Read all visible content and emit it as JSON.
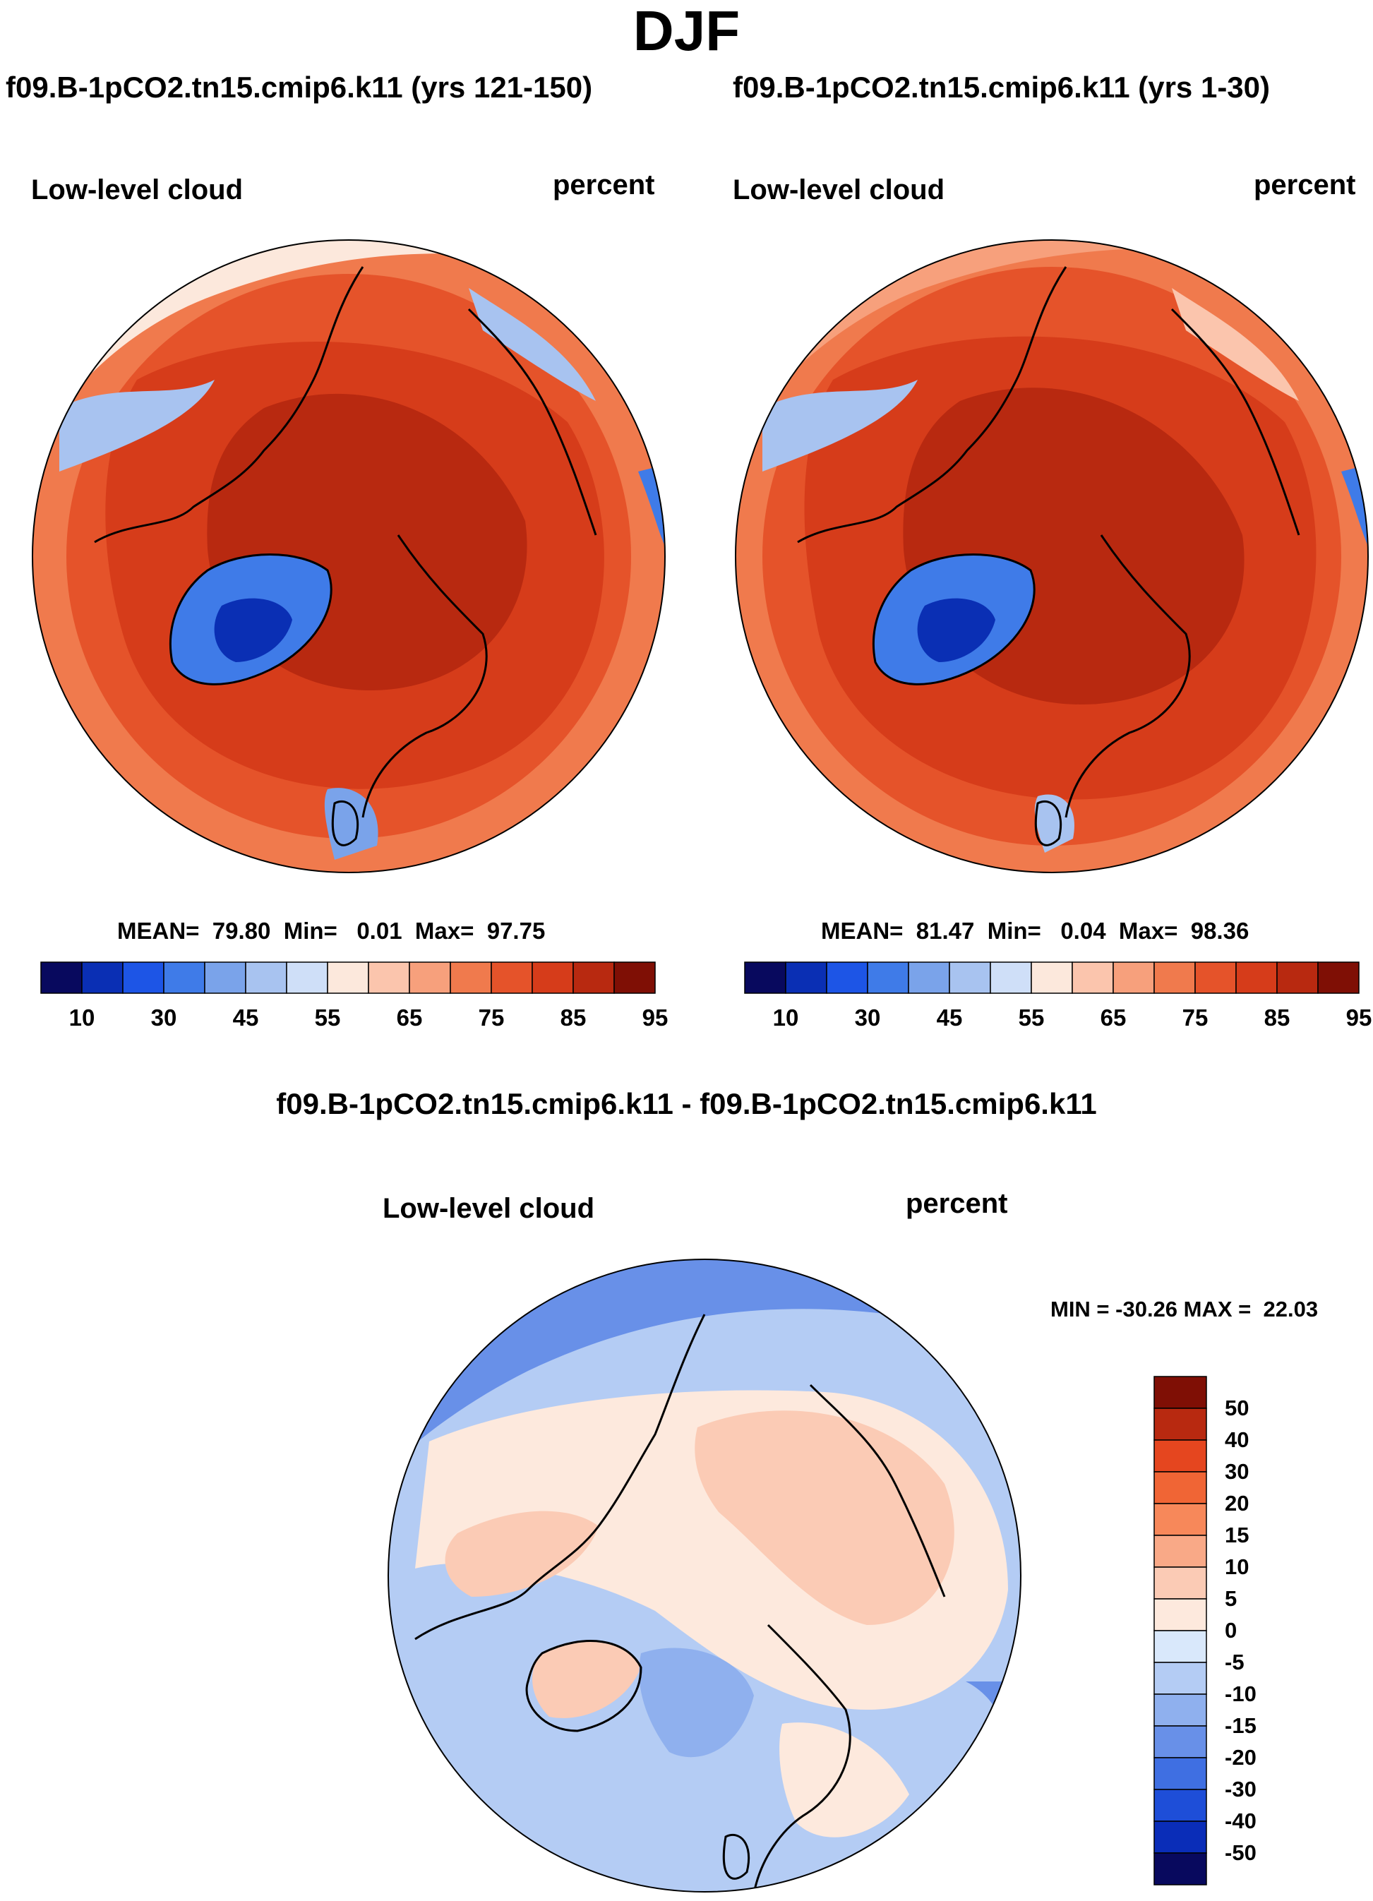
{
  "figure": {
    "title": "DJF"
  },
  "panels": {
    "left": {
      "case_title": "f09.B-1pCO2.tn15.cmip6.k11 (yrs 121-150)",
      "variable": "Low-level cloud",
      "units": "percent",
      "stats": {
        "mean_label": "MEAN=",
        "mean": "79.80",
        "min_label": "Min=",
        "min": "0.01",
        "max_label": "Max=",
        "max": "97.75"
      }
    },
    "right": {
      "case_title": "f09.B-1pCO2.tn15.cmip6.k11 (yrs 1-30)",
      "variable": "Low-level cloud",
      "units": "percent",
      "stats": {
        "mean_label": "MEAN=",
        "mean": "81.47",
        "min_label": "Min=",
        "min": "0.04",
        "max_label": "Max=",
        "max": "98.36"
      }
    },
    "diff": {
      "case_title": "f09.B-1pCO2.tn15.cmip6.k11 - f09.B-1pCO2.tn15.cmip6.k11",
      "variable": "Low-level cloud",
      "units": "percent",
      "minmax": "MIN = -30.26 MAX =  22.03"
    }
  },
  "colorbars": {
    "absolute": {
      "tick_labels": [
        "10",
        "30",
        "45",
        "55",
        "65",
        "75",
        "85",
        "95"
      ],
      "colors": [
        "#08095e",
        "#0a2fb4",
        "#1d55e6",
        "#3f7be8",
        "#7aa3ea",
        "#a8c3f0",
        "#cfdff8",
        "#fce8dc",
        "#fbc5ad",
        "#f7a07c",
        "#f07a4d",
        "#e5532a",
        "#d63c1a",
        "#b82910",
        "#7f0f05"
      ]
    },
    "difference": {
      "tick_labels": [
        "50",
        "40",
        "30",
        "20",
        "15",
        "10",
        "5",
        "0",
        "-5",
        "-10",
        "-15",
        "-20",
        "-30",
        "-40",
        "-50"
      ],
      "colors": [
        "#7f0f05",
        "#b82910",
        "#e5461f",
        "#f06535",
        "#f7885a",
        "#f9a987",
        "#fbcbb5",
        "#fde9dd",
        "#d9e8fb",
        "#b4ccf4",
        "#8fb0ee",
        "#6890e8",
        "#3f6fe2",
        "#1e4ed8",
        "#0a2db8",
        "#08095e"
      ]
    }
  },
  "maps": {
    "projection": "North Polar Stereographic",
    "left_colors": {
      "ocean_low": "#f07a4d",
      "core": "#b82910",
      "greenland": "#1d55e6",
      "greenland_core": "#0a2fb4",
      "edge": "#cfdff8"
    },
    "right_colors": {
      "ocean_low": "#f07a4d",
      "core": "#b82910",
      "greenland": "#1d55e6",
      "greenland_core": "#0a2fb4",
      "edge": "#cfdff8"
    },
    "diff_colors": {
      "base": "#b4ccf4",
      "warm": "#fbcbb5",
      "neutral": "#fde9dd",
      "cool": "#6890e8"
    }
  }
}
